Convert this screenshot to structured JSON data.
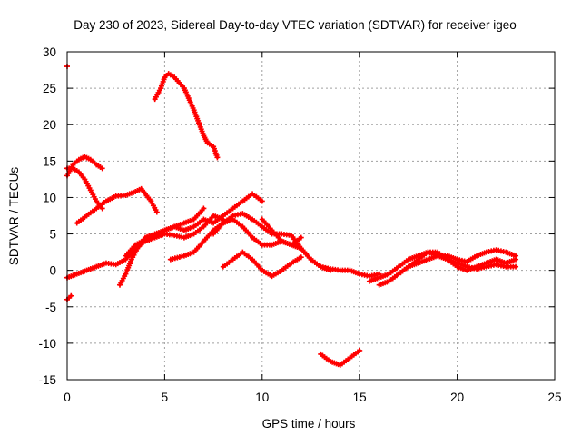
{
  "chart_data": {
    "type": "scatter",
    "title": "Day 230 of 2023, Sidereal Day-to-day VTEC variation (SDTVAR) for receiver igeo",
    "xlabel": "GPS time / hours",
    "ylabel": "SDTVAR / TECUs",
    "xlim": [
      0,
      25
    ],
    "ylim": [
      -15,
      30
    ],
    "xticks": [
      0,
      5,
      10,
      15,
      20,
      25
    ],
    "yticks": [
      -15,
      -10,
      -5,
      0,
      5,
      10,
      15,
      20,
      25,
      30
    ],
    "grid": true,
    "legend": "none",
    "color": "#ff0000",
    "marker": "plus",
    "series": [
      {
        "name": "s1",
        "x": [
          0.0
        ],
        "y": [
          28.0
        ]
      },
      {
        "name": "s2",
        "x": [
          4.5,
          4.8,
          5.0,
          5.2,
          5.5,
          6.0,
          6.5,
          7.0,
          7.2,
          7.5,
          7.7
        ],
        "y": [
          23.5,
          25.0,
          26.5,
          27.0,
          26.5,
          25.0,
          22.0,
          18.5,
          17.5,
          17.0,
          15.5
        ]
      },
      {
        "name": "s3",
        "x": [
          0.0,
          0.3,
          0.6,
          0.9,
          1.2,
          1.5,
          1.8
        ],
        "y": [
          13.0,
          14.5,
          15.2,
          15.6,
          15.2,
          14.5,
          14.0
        ]
      },
      {
        "name": "s4",
        "x": [
          0.0,
          0.3,
          0.6,
          0.9,
          1.2,
          1.5,
          1.8
        ],
        "y": [
          14.0,
          14.0,
          13.5,
          12.5,
          11.0,
          9.5,
          8.5
        ]
      },
      {
        "name": "s5",
        "x": [
          0.5,
          1.0,
          1.5,
          2.0,
          2.5,
          3.0,
          3.5,
          3.8,
          4.0,
          4.3,
          4.6
        ],
        "y": [
          6.5,
          7.5,
          8.5,
          9.5,
          10.2,
          10.3,
          10.8,
          11.2,
          10.5,
          9.5,
          8.0
        ]
      },
      {
        "name": "s6",
        "x": [
          0.0,
          0.5,
          1.0,
          1.5,
          2.0,
          2.5,
          3.0,
          3.5,
          4.0,
          4.5,
          5.0,
          5.5,
          6.0,
          6.5,
          7.0,
          7.5,
          8.0
        ],
        "y": [
          -1.0,
          -0.5,
          0.0,
          0.5,
          1.0,
          0.8,
          1.5,
          3.0,
          4.0,
          4.5,
          5.0,
          4.8,
          4.5,
          5.0,
          6.0,
          7.5,
          7.0
        ]
      },
      {
        "name": "s7",
        "x": [
          2.7,
          3.0,
          3.3,
          3.6,
          4.0,
          4.5,
          5.0,
          5.5,
          6.0,
          6.5,
          7.0
        ],
        "y": [
          -2.0,
          -0.5,
          1.5,
          3.0,
          4.5,
          5.0,
          5.5,
          6.0,
          6.5,
          7.0,
          8.5
        ]
      },
      {
        "name": "s8",
        "x": [
          3.0,
          3.5,
          4.0,
          4.5,
          5.0,
          5.5,
          6.0,
          6.5,
          7.0,
          7.5,
          8.0,
          8.5,
          9.0,
          9.5,
          10.0
        ],
        "y": [
          2.0,
          3.5,
          4.2,
          4.6,
          5.5,
          6.0,
          5.5,
          6.0,
          7.0,
          6.5,
          7.5,
          8.5,
          9.5,
          10.5,
          9.5
        ]
      },
      {
        "name": "s9",
        "x": [
          5.3,
          6.0,
          6.5,
          7.0,
          7.5,
          8.0,
          8.5,
          9.0,
          9.5,
          10.0,
          10.5,
          11.0,
          11.5,
          12.0
        ],
        "y": [
          1.5,
          2.0,
          2.5,
          4.0,
          5.5,
          6.5,
          7.0,
          6.0,
          4.5,
          3.5,
          3.5,
          4.0,
          3.5,
          4.5
        ]
      },
      {
        "name": "s10",
        "x": [
          7.5,
          8.0,
          8.5,
          9.0,
          9.5,
          10.0,
          10.5,
          11.0,
          11.5,
          12.0,
          12.5,
          13.0,
          13.5
        ],
        "y": [
          5.0,
          6.5,
          7.5,
          7.8,
          7.0,
          6.0,
          5.0,
          5.0,
          4.8,
          3.0,
          1.5,
          0.5,
          0.0
        ]
      },
      {
        "name": "s11",
        "x": [
          8.0,
          8.5,
          9.0,
          9.5,
          10.0,
          10.5,
          11.0,
          11.5,
          12.0
        ],
        "y": [
          0.5,
          1.5,
          2.5,
          1.5,
          0.0,
          -0.8,
          0.0,
          1.0,
          1.8
        ]
      },
      {
        "name": "s12",
        "x": [
          10.0,
          10.5,
          11.0,
          11.5,
          12.0,
          12.5,
          13.0,
          13.5,
          14.0,
          14.5,
          15.0,
          15.5,
          16.0
        ],
        "y": [
          7.0,
          5.5,
          4.0,
          3.5,
          3.0,
          1.5,
          0.5,
          0.2,
          0.0,
          0.0,
          -0.5,
          -0.8,
          -0.5
        ]
      },
      {
        "name": "s13",
        "x": [
          13.0,
          13.5,
          14.0,
          14.5,
          15.0
        ],
        "y": [
          -11.5,
          -12.5,
          -13.0,
          -12.0,
          -11.0
        ]
      },
      {
        "name": "s14",
        "x": [
          15.5,
          16.0,
          16.5,
          17.0,
          17.5,
          18.0,
          18.5,
          19.0,
          19.5,
          20.0,
          20.5,
          21.0,
          21.5,
          22.0,
          22.5,
          23.0
        ],
        "y": [
          -1.5,
          -1.0,
          -0.5,
          0.5,
          1.5,
          2.0,
          2.5,
          2.0,
          2.0,
          1.5,
          1.2,
          2.0,
          2.5,
          2.8,
          2.5,
          2.0
        ]
      },
      {
        "name": "s15",
        "x": [
          16.0,
          16.5,
          17.0,
          17.5,
          18.0,
          18.5,
          19.0,
          19.5,
          20.0,
          20.5,
          21.0,
          21.5,
          22.0,
          22.5,
          23.0
        ],
        "y": [
          -2.0,
          -1.5,
          -0.5,
          0.5,
          1.0,
          1.5,
          2.0,
          1.5,
          1.0,
          0.5,
          0.2,
          0.5,
          0.8,
          0.5,
          0.5
        ]
      },
      {
        "name": "s16",
        "x": [
          17.0,
          17.5,
          18.0,
          18.5,
          19.0,
          19.5,
          20.0,
          20.5,
          21.0,
          21.5,
          22.0,
          22.5,
          23.0
        ],
        "y": [
          -0.5,
          0.5,
          1.5,
          2.5,
          2.5,
          1.5,
          0.5,
          0.0,
          0.5,
          1.0,
          1.5,
          1.0,
          1.5
        ]
      },
      {
        "name": "s17",
        "x": [
          0.0,
          0.2
        ],
        "y": [
          -4.0,
          -3.5
        ]
      }
    ]
  }
}
